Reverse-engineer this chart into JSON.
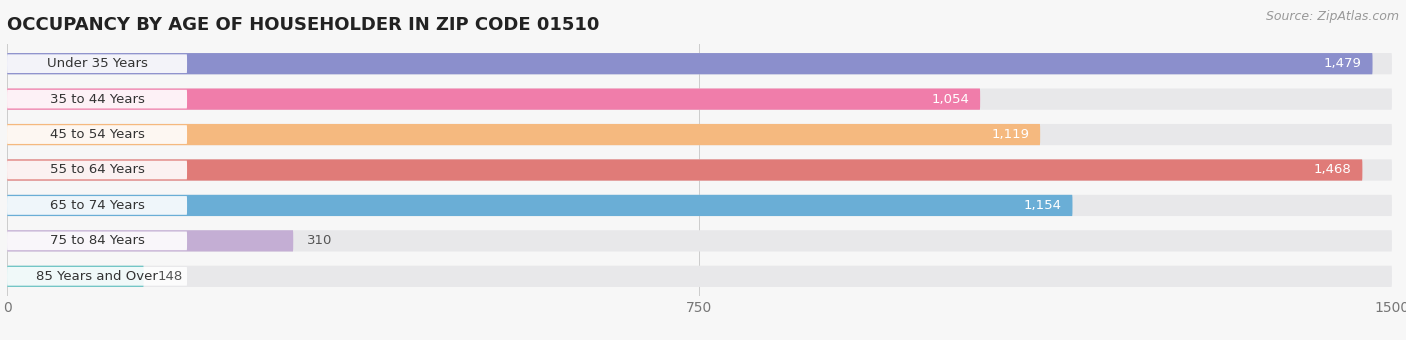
{
  "title": "OCCUPANCY BY AGE OF HOUSEHOLDER IN ZIP CODE 01510",
  "source": "Source: ZipAtlas.com",
  "categories": [
    "Under 35 Years",
    "35 to 44 Years",
    "45 to 54 Years",
    "55 to 64 Years",
    "65 to 74 Years",
    "75 to 84 Years",
    "85 Years and Over"
  ],
  "values": [
    1479,
    1054,
    1119,
    1468,
    1154,
    310,
    148
  ],
  "bar_colors": [
    "#8b8fcc",
    "#f07daa",
    "#f5b97f",
    "#e07b78",
    "#6aaed6",
    "#c4aed4",
    "#6dc4c4"
  ],
  "background_color": "#f7f7f7",
  "bar_bg_color": "#e8e8ea",
  "xlim": [
    0,
    1500
  ],
  "xticks": [
    0,
    750,
    1500
  ],
  "title_fontsize": 13,
  "label_fontsize": 9.5,
  "value_fontsize": 9.5,
  "source_fontsize": 9
}
